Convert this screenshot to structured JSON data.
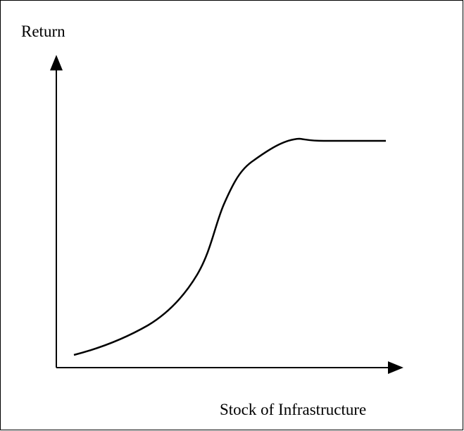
{
  "y_axis_label": "Return",
  "x_axis_label": "Stock of Infrastructure"
}
